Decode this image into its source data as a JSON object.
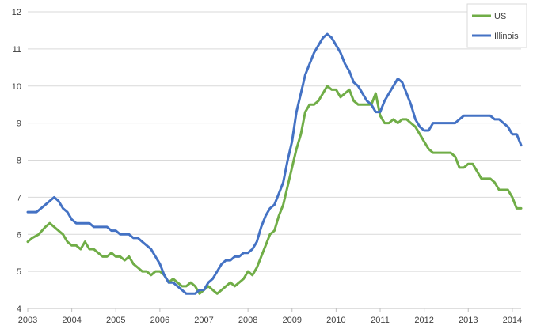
{
  "chart_data": {
    "type": "line",
    "title": "",
    "xlabel": "",
    "ylabel": "",
    "xlim": [
      2003,
      2014.2
    ],
    "ylim": [
      4,
      12
    ],
    "x_ticks": [
      "2003",
      "2004",
      "2005",
      "2006",
      "2007",
      "2008",
      "2009",
      "2010",
      "2011",
      "2012",
      "2013",
      "2014"
    ],
    "y_ticks": [
      "4",
      "5",
      "6",
      "7",
      "8",
      "9",
      "10",
      "11",
      "12"
    ],
    "grid": "horizontal",
    "legend_position": "top-right",
    "series": [
      {
        "name": "US",
        "color": "#70AD47",
        "x": [
          2003,
          2003.1,
          2003.25,
          2003.4,
          2003.5,
          2003.6,
          2003.7,
          2003.8,
          2003.9,
          2004,
          2004.1,
          2004.2,
          2004.3,
          2004.4,
          2004.5,
          2004.6,
          2004.7,
          2004.8,
          2004.9,
          2005,
          2005.1,
          2005.2,
          2005.3,
          2005.4,
          2005.5,
          2005.6,
          2005.7,
          2005.8,
          2005.9,
          2006,
          2006.1,
          2006.2,
          2006.3,
          2006.4,
          2006.5,
          2006.6,
          2006.7,
          2006.8,
          2006.9,
          2007,
          2007.1,
          2007.2,
          2007.3,
          2007.4,
          2007.5,
          2007.6,
          2007.7,
          2007.8,
          2007.9,
          2008,
          2008.1,
          2008.2,
          2008.3,
          2008.4,
          2008.5,
          2008.6,
          2008.7,
          2008.8,
          2008.9,
          2009,
          2009.1,
          2009.2,
          2009.3,
          2009.4,
          2009.5,
          2009.6,
          2009.7,
          2009.8,
          2009.9,
          2010,
          2010.1,
          2010.2,
          2010.3,
          2010.4,
          2010.5,
          2010.6,
          2010.7,
          2010.8,
          2010.9,
          2011,
          2011.1,
          2011.2,
          2011.3,
          2011.4,
          2011.5,
          2011.6,
          2011.7,
          2011.8,
          2011.9,
          2012,
          2012.1,
          2012.2,
          2012.3,
          2012.4,
          2012.5,
          2012.6,
          2012.7,
          2012.8,
          2012.9,
          2013,
          2013.1,
          2013.2,
          2013.3,
          2013.4,
          2013.5,
          2013.6,
          2013.7,
          2013.8,
          2013.9,
          2014,
          2014.1,
          2014.2
        ],
        "y": [
          5.8,
          5.9,
          6.0,
          6.2,
          6.3,
          6.2,
          6.1,
          6.0,
          5.8,
          5.7,
          5.7,
          5.6,
          5.8,
          5.6,
          5.6,
          5.5,
          5.4,
          5.4,
          5.5,
          5.4,
          5.4,
          5.3,
          5.4,
          5.2,
          5.1,
          5.0,
          5.0,
          4.9,
          5.0,
          5.0,
          4.9,
          4.7,
          4.8,
          4.7,
          4.6,
          4.6,
          4.7,
          4.6,
          4.4,
          4.5,
          4.6,
          4.5,
          4.4,
          4.5,
          4.6,
          4.7,
          4.6,
          4.7,
          4.8,
          5.0,
          4.9,
          5.1,
          5.4,
          5.7,
          6.0,
          6.1,
          6.5,
          6.8,
          7.3,
          7.8,
          8.3,
          8.7,
          9.3,
          9.5,
          9.5,
          9.6,
          9.8,
          10.0,
          9.9,
          9.9,
          9.7,
          9.8,
          9.9,
          9.6,
          9.5,
          9.5,
          9.5,
          9.5,
          9.8,
          9.2,
          9.0,
          9.0,
          9.1,
          9.0,
          9.1,
          9.1,
          9.0,
          8.9,
          8.7,
          8.5,
          8.3,
          8.2,
          8.2,
          8.2,
          8.2,
          8.2,
          8.1,
          7.8,
          7.8,
          7.9,
          7.9,
          7.7,
          7.5,
          7.5,
          7.5,
          7.4,
          7.2,
          7.2,
          7.2,
          7.0,
          6.7,
          6.7
        ]
      },
      {
        "name": "Illinois",
        "color": "#4472C4",
        "x": [
          2003,
          2003.2,
          2003.4,
          2003.5,
          2003.6,
          2003.7,
          2003.8,
          2003.9,
          2004,
          2004.1,
          2004.2,
          2004.3,
          2004.4,
          2004.5,
          2004.6,
          2004.7,
          2004.8,
          2004.9,
          2005,
          2005.1,
          2005.2,
          2005.3,
          2005.4,
          2005.5,
          2005.6,
          2005.7,
          2005.8,
          2005.9,
          2006,
          2006.1,
          2006.2,
          2006.3,
          2006.4,
          2006.5,
          2006.6,
          2006.7,
          2006.8,
          2006.9,
          2007,
          2007.1,
          2007.2,
          2007.3,
          2007.4,
          2007.5,
          2007.6,
          2007.7,
          2007.8,
          2007.9,
          2008,
          2008.1,
          2008.2,
          2008.3,
          2008.4,
          2008.5,
          2008.6,
          2008.7,
          2008.8,
          2008.9,
          2009,
          2009.1,
          2009.2,
          2009.3,
          2009.4,
          2009.5,
          2009.6,
          2009.7,
          2009.8,
          2009.9,
          2010,
          2010.1,
          2010.2,
          2010.3,
          2010.4,
          2010.5,
          2010.6,
          2010.7,
          2010.8,
          2010.9,
          2011,
          2011.1,
          2011.2,
          2011.3,
          2011.4,
          2011.5,
          2011.6,
          2011.7,
          2011.8,
          2011.9,
          2012,
          2012.1,
          2012.2,
          2012.3,
          2012.4,
          2012.5,
          2012.6,
          2012.7,
          2012.8,
          2012.9,
          2013,
          2013.1,
          2013.2,
          2013.3,
          2013.4,
          2013.5,
          2013.6,
          2013.7,
          2013.8,
          2013.9,
          2014,
          2014.1,
          2014.2
        ],
        "y": [
          6.6,
          6.6,
          6.8,
          6.9,
          7.0,
          6.9,
          6.7,
          6.6,
          6.4,
          6.3,
          6.3,
          6.3,
          6.3,
          6.2,
          6.2,
          6.2,
          6.2,
          6.1,
          6.1,
          6.0,
          6.0,
          6.0,
          5.9,
          5.9,
          5.8,
          5.7,
          5.6,
          5.4,
          5.2,
          4.9,
          4.7,
          4.7,
          4.6,
          4.5,
          4.4,
          4.4,
          4.4,
          4.5,
          4.5,
          4.7,
          4.8,
          5.0,
          5.2,
          5.3,
          5.3,
          5.4,
          5.4,
          5.5,
          5.5,
          5.6,
          5.8,
          6.2,
          6.5,
          6.7,
          6.8,
          7.1,
          7.4,
          8.0,
          8.5,
          9.3,
          9.8,
          10.3,
          10.6,
          10.9,
          11.1,
          11.3,
          11.4,
          11.3,
          11.1,
          10.9,
          10.6,
          10.4,
          10.1,
          10.0,
          9.8,
          9.6,
          9.5,
          9.3,
          9.3,
          9.6,
          9.8,
          10.0,
          10.2,
          10.1,
          9.8,
          9.5,
          9.1,
          8.9,
          8.8,
          8.8,
          9.0,
          9.0,
          9.0,
          9.0,
          9.0,
          9.0,
          9.1,
          9.2,
          9.2,
          9.2,
          9.2,
          9.2,
          9.2,
          9.2,
          9.1,
          9.1,
          9.0,
          8.9,
          8.7,
          8.7,
          8.4
        ]
      }
    ]
  }
}
